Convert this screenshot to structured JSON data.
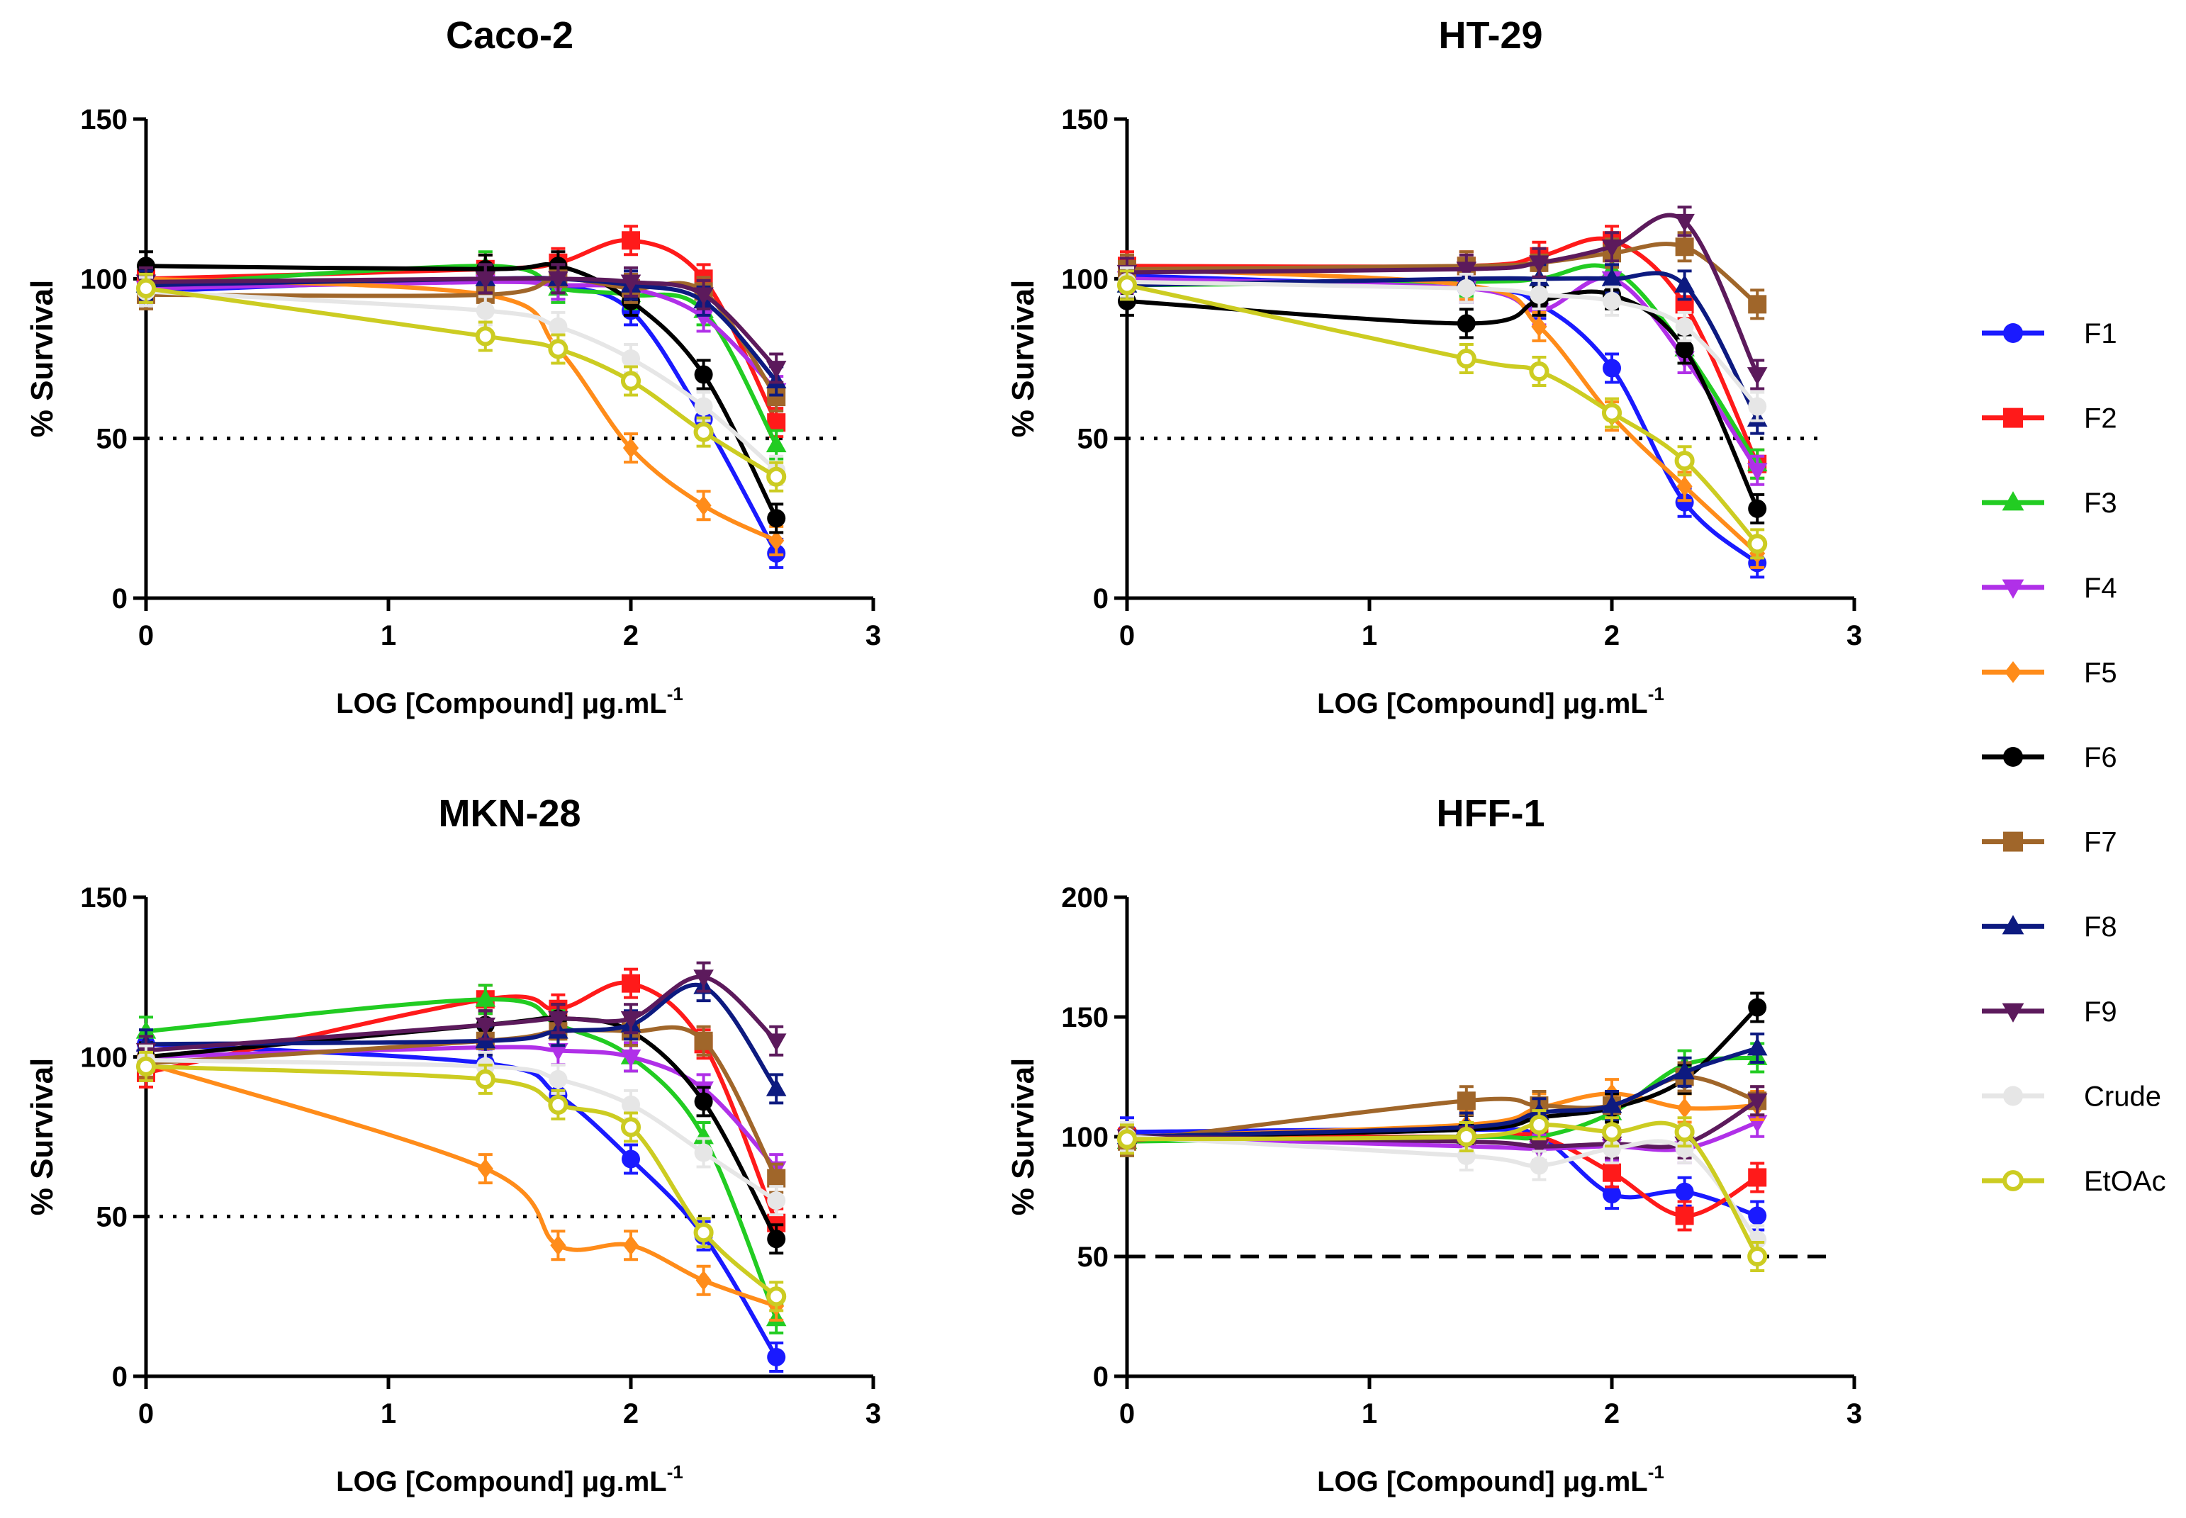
{
  "figure": {
    "legend": {
      "placement": "right"
    }
  },
  "series_styles": [
    {
      "name": "F1",
      "color": "#1a1aff",
      "marker": "circle"
    },
    {
      "name": "F2",
      "color": "#ff1a1a",
      "marker": "square"
    },
    {
      "name": "F3",
      "color": "#22cc22",
      "marker": "triangle-up"
    },
    {
      "name": "F4",
      "color": "#b030e8",
      "marker": "triangle-down"
    },
    {
      "name": "F5",
      "color": "#ff8c1a",
      "marker": "diamond"
    },
    {
      "name": "F6",
      "color": "#000000",
      "marker": "circle"
    },
    {
      "name": "F7",
      "color": "#a0662a",
      "marker": "square"
    },
    {
      "name": "F8",
      "color": "#0d1a80",
      "marker": "triangle-up"
    },
    {
      "name": "F9",
      "color": "#5c1a5c",
      "marker": "triangle-down"
    },
    {
      "name": "Crude",
      "color": "#dddddd",
      "marker": "circle"
    },
    {
      "name": "EtOAc",
      "color": "#cccc22",
      "marker": "circle-open"
    }
  ],
  "chart_data": [
    {
      "type": "scatter",
      "title": "Caco-2",
      "xlabel": "LOG [Compound] μg.mL",
      "xlabel_sup": "-1",
      "ylabel": "% Survival",
      "xlim": [
        0,
        3
      ],
      "ylim": [
        0,
        150
      ],
      "xticks": [
        "0",
        "1",
        "2",
        "3"
      ],
      "yticks": [
        "0",
        "50",
        "100",
        "150"
      ],
      "reference_line": {
        "y": 50,
        "style": "dotted"
      },
      "x": [
        0,
        1.4,
        1.7,
        2.0,
        2.3,
        2.6
      ],
      "series": [
        {
          "name": "F1",
          "values": [
            96,
            100,
            98,
            90,
            56,
            14
          ]
        },
        {
          "name": "F2",
          "values": [
            100,
            103,
            105,
            112,
            100,
            55
          ]
        },
        {
          "name": "F3",
          "values": [
            98,
            104,
            97,
            95,
            90,
            48
          ]
        },
        {
          "name": "F4",
          "values": [
            97,
            99,
            98,
            97,
            88,
            65
          ]
        },
        {
          "name": "F5",
          "values": [
            100,
            95,
            78,
            47,
            29,
            18
          ]
        },
        {
          "name": "F6",
          "values": [
            104,
            103,
            104,
            93,
            70,
            25
          ]
        },
        {
          "name": "F7",
          "values": [
            95,
            95,
            100,
            97,
            96,
            63
          ]
        },
        {
          "name": "F8",
          "values": [
            98,
            100,
            100,
            98,
            93,
            68
          ]
        },
        {
          "name": "F9",
          "values": [
            99,
            100,
            100,
            99,
            95,
            72
          ]
        },
        {
          "name": "Crude",
          "values": [
            96,
            90,
            85,
            75,
            60,
            40
          ]
        },
        {
          "name": "EtOAc",
          "values": [
            97,
            82,
            78,
            68,
            52,
            38
          ]
        }
      ]
    },
    {
      "type": "scatter",
      "title": "HT-29",
      "xlabel": "LOG [Compound] μg.mL",
      "xlabel_sup": "-1",
      "ylabel": "% Survival",
      "xlim": [
        0,
        3
      ],
      "ylim": [
        0,
        150
      ],
      "xticks": [
        "0",
        "1",
        "2",
        "3"
      ],
      "yticks": [
        "0",
        "50",
        "100",
        "150"
      ],
      "reference_line": {
        "y": 50,
        "style": "dotted"
      },
      "x": [
        0,
        1.4,
        1.7,
        2.0,
        2.3,
        2.6
      ],
      "series": [
        {
          "name": "F1",
          "values": [
            101,
            97,
            92,
            72,
            30,
            11
          ]
        },
        {
          "name": "F2",
          "values": [
            104,
            104,
            107,
            112,
            92,
            42
          ]
        },
        {
          "name": "F3",
          "values": [
            98,
            99,
            100,
            103,
            78,
            42
          ]
        },
        {
          "name": "F4",
          "values": [
            100,
            97,
            90,
            100,
            75,
            40
          ]
        },
        {
          "name": "F5",
          "values": [
            103,
            98,
            85,
            57,
            35,
            14
          ]
        },
        {
          "name": "F6",
          "values": [
            93,
            86,
            93,
            95,
            78,
            28
          ]
        },
        {
          "name": "F7",
          "values": [
            103,
            104,
            105,
            108,
            110,
            92
          ]
        },
        {
          "name": "F8",
          "values": [
            98,
            100,
            100,
            100,
            98,
            56
          ]
        },
        {
          "name": "F9",
          "values": [
            102,
            103,
            105,
            110,
            118,
            70
          ]
        },
        {
          "name": "Crude",
          "values": [
            99,
            97,
            95,
            93,
            85,
            60
          ]
        },
        {
          "name": "EtOAc",
          "values": [
            98,
            75,
            71,
            58,
            43,
            17
          ]
        }
      ]
    },
    {
      "type": "scatter",
      "title": "MKN-28",
      "xlabel": "LOG [Compound] μg.mL",
      "xlabel_sup": "-1",
      "ylabel": "% Survival",
      "xlim": [
        0,
        3
      ],
      "ylim": [
        0,
        150
      ],
      "xticks": [
        "0",
        "1",
        "2",
        "3"
      ],
      "yticks": [
        "0",
        "50",
        "100",
        "150"
      ],
      "reference_line": {
        "y": 50,
        "style": "dotted"
      },
      "x": [
        0,
        1.4,
        1.7,
        2.0,
        2.3,
        2.6
      ],
      "series": [
        {
          "name": "F1",
          "values": [
            104,
            98,
            88,
            68,
            44,
            6
          ]
        },
        {
          "name": "F2",
          "values": [
            95,
            118,
            115,
            123,
            104,
            48
          ]
        },
        {
          "name": "F3",
          "values": [
            108,
            118,
            110,
            100,
            75,
            18
          ]
        },
        {
          "name": "F4",
          "values": [
            100,
            103,
            102,
            100,
            90,
            65
          ]
        },
        {
          "name": "F5",
          "values": [
            98,
            65,
            41,
            41,
            30,
            22
          ]
        },
        {
          "name": "F6",
          "values": [
            100,
            110,
            112,
            108,
            86,
            43
          ]
        },
        {
          "name": "F7",
          "values": [
            98,
            105,
            108,
            108,
            105,
            62
          ]
        },
        {
          "name": "F8",
          "values": [
            104,
            105,
            108,
            110,
            122,
            90
          ]
        },
        {
          "name": "F9",
          "values": [
            102,
            110,
            112,
            112,
            125,
            105
          ]
        },
        {
          "name": "Crude",
          "values": [
            99,
            97,
            93,
            85,
            70,
            55
          ]
        },
        {
          "name": "EtOAc",
          "values": [
            97,
            93,
            85,
            78,
            45,
            25
          ]
        }
      ]
    },
    {
      "type": "scatter",
      "title": "HFF-1",
      "xlabel": "LOG [Compound] μg.mL",
      "xlabel_sup": "-1",
      "ylabel": "% Survival",
      "xlim": [
        0,
        3
      ],
      "ylim": [
        0,
        200
      ],
      "xticks": [
        "0",
        "1",
        "2",
        "3"
      ],
      "yticks": [
        "0",
        "50",
        "100",
        "150",
        "200"
      ],
      "reference_line": {
        "y": 50,
        "style": "dashed"
      },
      "x": [
        0,
        1.4,
        1.7,
        2.0,
        2.3,
        2.6
      ],
      "series": [
        {
          "name": "F1",
          "values": [
            102,
            103,
            100,
            76,
            77,
            67
          ]
        },
        {
          "name": "F2",
          "values": [
            100,
            100,
            100,
            85,
            67,
            83
          ]
        },
        {
          "name": "F3",
          "values": [
            98,
            100,
            100,
            110,
            130,
            133
          ]
        },
        {
          "name": "F4",
          "values": [
            100,
            96,
            95,
            96,
            95,
            106
          ]
        },
        {
          "name": "F5",
          "values": [
            100,
            105,
            112,
            118,
            112,
            113
          ]
        },
        {
          "name": "F6",
          "values": [
            100,
            103,
            108,
            112,
            124,
            154
          ]
        },
        {
          "name": "F7",
          "values": [
            98,
            115,
            113,
            113,
            125,
            115
          ]
        },
        {
          "name": "F8",
          "values": [
            100,
            104,
            110,
            113,
            127,
            137
          ]
        },
        {
          "name": "F9",
          "values": [
            100,
            98,
            96,
            97,
            97,
            115
          ]
        },
        {
          "name": "Crude",
          "values": [
            100,
            92,
            88,
            95,
            95,
            57
          ]
        },
        {
          "name": "EtOAc",
          "values": [
            99,
            100,
            105,
            102,
            102,
            50
          ]
        }
      ]
    }
  ]
}
